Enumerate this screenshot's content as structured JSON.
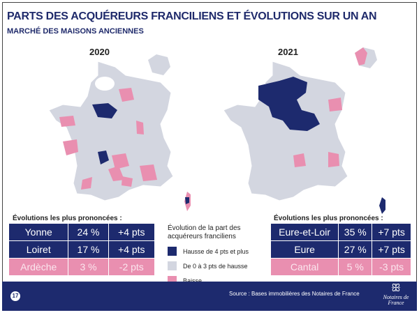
{
  "header": {
    "title": "PARTS DES ACQUÉREURS FRANCILIENS ET ÉVOLUTIONS SUR UN AN",
    "subtitle": "MARCHÉ DES MAISONS ANCIENNES"
  },
  "maps": [
    {
      "year": "2020"
    },
    {
      "year": "2021"
    }
  ],
  "colors": {
    "strong_rise": "#1d2a6e",
    "small_rise": "#d3d6e0",
    "decline": "#e98fb0"
  },
  "left_table": {
    "heading": "Évolutions les plus prononcées :",
    "rows": [
      {
        "dept": "Yonne",
        "share": "24 %",
        "change": "+4 pts",
        "type": "up"
      },
      {
        "dept": "Loiret",
        "share": "17 %",
        "change": "+4 pts",
        "type": "up"
      },
      {
        "dept": "Ardèche",
        "share": "3 %",
        "change": "-2 pts",
        "type": "down"
      }
    ]
  },
  "right_table": {
    "heading": "Évolutions les plus prononcées :",
    "rows": [
      {
        "dept": "Eure-et-Loir",
        "share": "35 %",
        "change": "+7 pts",
        "type": "up"
      },
      {
        "dept": "Eure",
        "share": "27 %",
        "change": "+7 pts",
        "type": "up"
      },
      {
        "dept": "Cantal",
        "share": "5 %",
        "change": "-3 pts",
        "type": "down"
      }
    ]
  },
  "legend": {
    "title": "Évolution de la part des acquéreurs franciliens",
    "items": [
      {
        "label": "Hausse de 4 pts et plus",
        "color": "#1d2a6e"
      },
      {
        "label": "De 0 à 3 pts de hausse",
        "color": "#d3d6e0"
      },
      {
        "label": "Baisse",
        "color": "#e98fb0"
      }
    ]
  },
  "footer": {
    "page": "17",
    "source": "Source :  Bases immobilières des Notaires de France",
    "logo": "Notaires de France"
  }
}
